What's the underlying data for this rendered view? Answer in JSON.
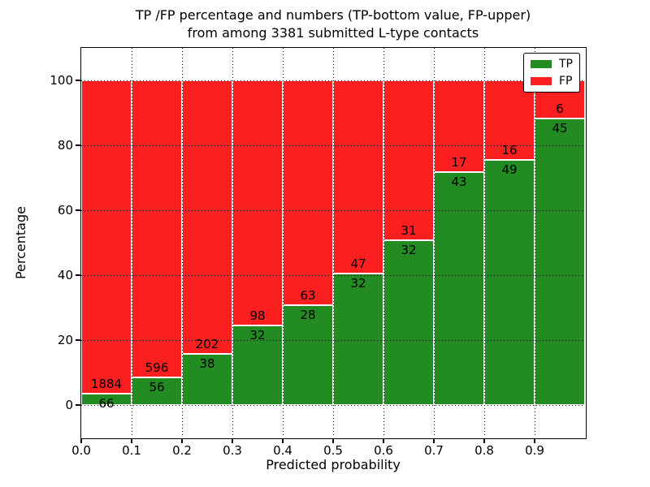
{
  "chart_data": {
    "type": "bar",
    "stacked": true,
    "normalized": "each bin stacked to 100%",
    "title_lines": [
      "TP /FP percentage and numbers (TP-bottom value, FP-upper)",
      "from among 3381 submitted L-type contacts"
    ],
    "xlabel": "Predicted probability",
    "ylabel": "Percentage",
    "total_contacts": 3381,
    "bin_edges": [
      0.0,
      0.1,
      0.2,
      0.3,
      0.4,
      0.5,
      0.6,
      0.7,
      0.8,
      0.9,
      1.0
    ],
    "bin_width": 0.1,
    "series": [
      {
        "name": "TP",
        "color": "#228b22",
        "counts": [
          66,
          56,
          38,
          32,
          28,
          32,
          32,
          43,
          49,
          45
        ]
      },
      {
        "name": "FP",
        "color": "#fb1f1f",
        "counts": [
          1884,
          596,
          202,
          98,
          63,
          47,
          31,
          17,
          16,
          6
        ]
      }
    ],
    "tp_percent": [
      3.4,
      8.6,
      15.8,
      24.6,
      30.8,
      40.5,
      50.8,
      71.7,
      75.4,
      88.2
    ],
    "xlim": [
      0.0,
      1.0
    ],
    "ylim": [
      -10,
      110
    ],
    "xticks": [
      "0.0",
      "0.1",
      "0.2",
      "0.3",
      "0.4",
      "0.5",
      "0.6",
      "0.7",
      "0.8",
      "0.9"
    ],
    "yticks": [
      0,
      20,
      40,
      60,
      80,
      100
    ],
    "grid": "dotted",
    "grid_color": "#000000",
    "bar_edge_color": "#ffffff",
    "background_color": "#ffffff",
    "legend": {
      "position": "upper right",
      "entries": [
        {
          "label": "TP",
          "color": "#228b22"
        },
        {
          "label": "FP",
          "color": "#fb1f1f"
        }
      ]
    }
  }
}
